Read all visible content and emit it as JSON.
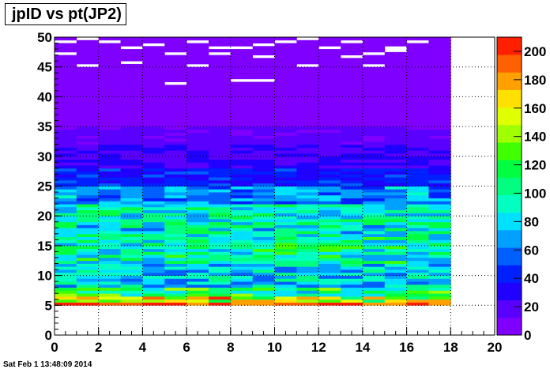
{
  "title": "jpID vs pt(JP2)",
  "timestamp": "Sat Feb  1 13:48:09 2014",
  "chart_data": {
    "type": "heatmap",
    "title": "jpID vs pt(JP2)",
    "xlabel": "",
    "ylabel": "",
    "xlim": [
      0,
      20
    ],
    "ylim": [
      0,
      50
    ],
    "x_ticks": [
      "0",
      "2",
      "4",
      "6",
      "8",
      "10",
      "12",
      "14",
      "16",
      "18",
      "20"
    ],
    "y_ticks": [
      "0",
      "5",
      "10",
      "15",
      "20",
      "25",
      "30",
      "35",
      "40",
      "45",
      "50"
    ],
    "z_range": [
      0,
      210
    ],
    "colorbar_ticks": [
      "0",
      "20",
      "40",
      "60",
      "80",
      "100",
      "120",
      "140",
      "160",
      "180",
      "200"
    ],
    "grid": true,
    "x_bins": {
      "min": 0,
      "max": 18,
      "count": 18
    },
    "y_bins": {
      "min": 0,
      "max": 50,
      "count": 100
    },
    "profile": [
      [
        0,
        5,
        0
      ],
      [
        5,
        5.5,
        200
      ],
      [
        5.5,
        6.5,
        150
      ],
      [
        6.5,
        8,
        110
      ],
      [
        8,
        12,
        80
      ],
      [
        12,
        17,
        95
      ],
      [
        17,
        22,
        90
      ],
      [
        22,
        25,
        65
      ],
      [
        25,
        28,
        40
      ],
      [
        28,
        32,
        25
      ],
      [
        32,
        35,
        15
      ],
      [
        35,
        40,
        7
      ],
      [
        40,
        50,
        2
      ]
    ],
    "empty_cells": [
      [
        0,
        49
      ],
      [
        1,
        49.5
      ],
      [
        2,
        49
      ],
      [
        3,
        48
      ],
      [
        4,
        48.5
      ],
      [
        5,
        47
      ],
      [
        6,
        49
      ],
      [
        7,
        48
      ],
      [
        8,
        48
      ],
      [
        9,
        48.5
      ],
      [
        10,
        49
      ],
      [
        11,
        49.5
      ],
      [
        12,
        48
      ],
      [
        13,
        49
      ],
      [
        14,
        47
      ],
      [
        15,
        48
      ],
      [
        16,
        49
      ],
      [
        0,
        47
      ],
      [
        3,
        45.5
      ],
      [
        6,
        45
      ],
      [
        7,
        47
      ],
      [
        9,
        46.5
      ],
      [
        14,
        45
      ],
      [
        15,
        47.5
      ],
      [
        5,
        42
      ],
      [
        8,
        42.5
      ],
      [
        9,
        42.5
      ],
      [
        13,
        46.5
      ],
      [
        11,
        45
      ],
      [
        1,
        45
      ]
    ]
  },
  "colors": {
    "palette": [
      "#7f00ff",
      "#5a00ff",
      "#2000ff",
      "#0020ff",
      "#0060ff",
      "#00a0ff",
      "#00e0ff",
      "#00ffc0",
      "#00ff80",
      "#00ff40",
      "#40ff00",
      "#a0ff00",
      "#e0ff00",
      "#ffe000",
      "#ffa000",
      "#ff6000",
      "#ff2000"
    ],
    "frame": "#000000",
    "grid": "#000000",
    "background": "#ffffff"
  }
}
